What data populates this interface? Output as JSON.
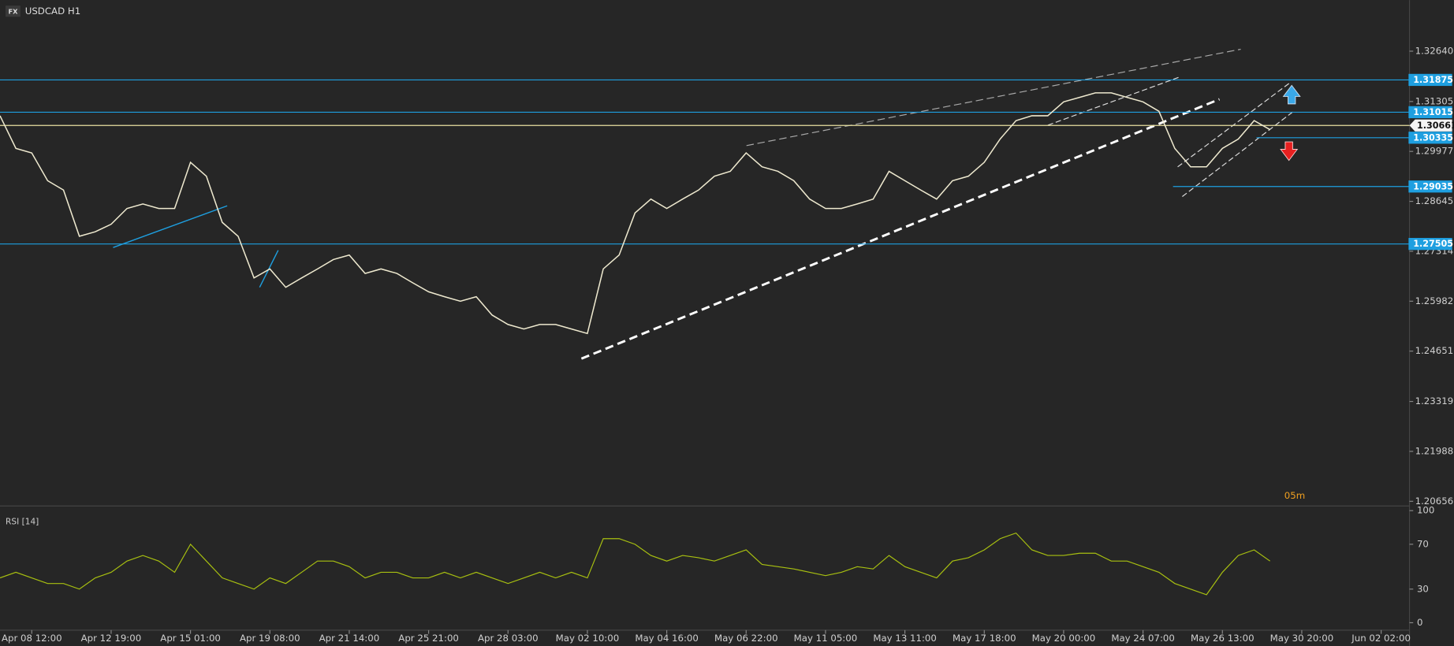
{
  "chart_data": {
    "type": "line",
    "badge": "FX",
    "title": "USDCAD H1",
    "timer": "05m",
    "color": "#eee9cf",
    "categories": [
      null,
      null,
      "Apr 08 12:00",
      null,
      null,
      null,
      null,
      "Apr 12 19:00",
      null,
      null,
      null,
      null,
      "Apr 15 01:00",
      null,
      null,
      null,
      null,
      "Apr 19 08:00",
      null,
      null,
      null,
      null,
      "Apr 21 14:00",
      null,
      null,
      null,
      null,
      "Apr 25 21:00",
      null,
      null,
      null,
      null,
      "Apr 28 03:00",
      null,
      null,
      null,
      null,
      "May 02 10:00",
      null,
      null,
      null,
      null,
      "May 04 16:00",
      null,
      null,
      null,
      null,
      "May 06 22:00",
      null,
      null,
      null,
      null,
      "May 11 05:00",
      null,
      null,
      null,
      null,
      "May 13 11:00",
      null,
      null,
      null,
      null,
      "May 17 18:00",
      null,
      null,
      null,
      null,
      "May 20 00:00",
      null,
      null,
      null,
      null,
      "May 24 07:00",
      null,
      null,
      null,
      null,
      "May 26 13:00",
      null,
      null,
      null,
      null,
      "May 30 20:00",
      null,
      null,
      null,
      null,
      "Jun 02 02:00",
      null
    ],
    "values": [
      1.3092,
      1.3005,
      1.2993,
      1.2919,
      1.2894,
      1.2771,
      1.2783,
      1.2803,
      1.2845,
      1.2857,
      1.2845,
      1.2845,
      1.2968,
      1.2931,
      1.2808,
      1.2771,
      1.266,
      1.2684,
      1.2635,
      1.266,
      1.2684,
      1.2709,
      1.2721,
      1.2672,
      1.2684,
      1.2672,
      1.2647,
      1.2623,
      1.261,
      1.2598,
      1.261,
      1.2561,
      1.2536,
      1.2524,
      1.2536,
      1.2536,
      1.2524,
      1.2512,
      1.2684,
      1.2721,
      1.2833,
      1.287,
      1.2845,
      1.287,
      1.2894,
      1.2931,
      1.2944,
      1.2993,
      1.2956,
      1.2944,
      1.2919,
      1.287,
      1.2845,
      1.2845,
      1.2857,
      1.287,
      1.2944,
      1.2919,
      1.2894,
      1.287,
      1.2919,
      1.2931,
      1.2968,
      1.303,
      1.3079,
      1.3092,
      1.3092,
      1.3129,
      1.3141,
      1.3153,
      1.3153,
      1.3141,
      1.3129,
      1.3104,
      1.3005,
      1.2956,
      1.2956,
      1.3005,
      1.303,
      1.3079,
      1.3055,
      null,
      null,
      null,
      null,
      null,
      null,
      null,
      null
    ],
    "ylim": [
      1.2055,
      1.34
    ],
    "yticks": [
      {
        "value": 1.3264,
        "label": "1.32640"
      },
      {
        "value": 1.313,
        "label": "1.31305"
      },
      {
        "value": 1.2997,
        "label": "1.29977"
      },
      {
        "value": 1.2864,
        "label": "1.28645"
      },
      {
        "value": 1.2731,
        "label": "1.27314"
      },
      {
        "value": 1.2598,
        "label": "1.25982"
      },
      {
        "value": 1.2465,
        "label": "1.24651"
      },
      {
        "value": 1.2331,
        "label": "1.23319"
      },
      {
        "value": 1.2198,
        "label": "1.21988"
      },
      {
        "value": 1.2065,
        "label": "1.20656"
      }
    ],
    "levels": [
      {
        "value": 1.31875,
        "label": "1.31875"
      },
      {
        "value": 1.31015,
        "label": "1.31015"
      },
      {
        "value": 1.30335,
        "label": "1.30335"
      },
      {
        "value": 1.29035,
        "label": "1.29035"
      },
      {
        "value": 1.27505,
        "label": "1.27505"
      }
    ],
    "level_color": "#1e9fe0",
    "current": {
      "value": 1.30661,
      "label": "1.30661",
      "color": "#e8e0a0"
    },
    "rsi": {
      "title": "RSI [14]",
      "color": "#a8c010",
      "ylim": [
        -6.6,
        102.5
      ],
      "yticks": [
        0,
        30,
        70,
        100
      ],
      "values": [
        40,
        45,
        40,
        35,
        35,
        30,
        40,
        45,
        55,
        60,
        55,
        45,
        70,
        55,
        40,
        35,
        30,
        40,
        35,
        45,
        55,
        55,
        50,
        40,
        45,
        45,
        40,
        40,
        45,
        40,
        45,
        40,
        35,
        40,
        45,
        40,
        45,
        40,
        75,
        75,
        70,
        60,
        55,
        60,
        58,
        55,
        60,
        65,
        52,
        50,
        48,
        45,
        42,
        45,
        50,
        48,
        60,
        50,
        45,
        40,
        55,
        58,
        65,
        75,
        80,
        65,
        60,
        60,
        62,
        62,
        55,
        55,
        50,
        45,
        35,
        30,
        25,
        45,
        60,
        65,
        55,
        null,
        null,
        null,
        null,
        null,
        null,
        null,
        null
      ]
    }
  }
}
